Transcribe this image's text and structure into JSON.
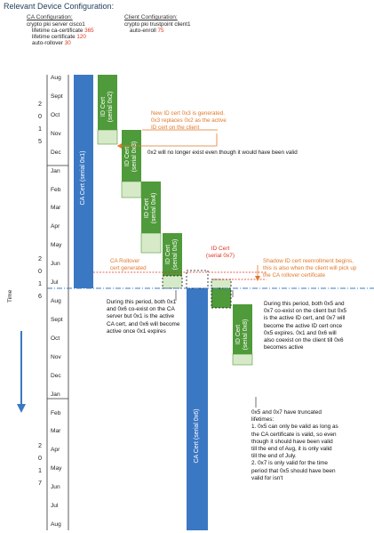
{
  "title": "Relevant Device Configuration:",
  "ca_config": {
    "heading": "CA Configuration:",
    "lines": [
      {
        "text": "crypto pki server cisco1",
        "value": ""
      },
      {
        "text": "lifetime ca-certificate ",
        "value": "365"
      },
      {
        "text": "lifetime certificate ",
        "value": "120"
      },
      {
        "text": "auto-rollover ",
        "value": "30"
      }
    ]
  },
  "client_config": {
    "heading": "Client Configuration:",
    "lines": [
      {
        "text": "crypto pki trustpoint client1",
        "value": ""
      },
      {
        "text": "auto-enroll ",
        "value": "75"
      }
    ]
  },
  "timeline": {
    "months": [
      "Aug",
      "Sept",
      "Oct",
      "Nov",
      "Dec",
      "Jan",
      "Feb",
      "Mar",
      "Apr",
      "May",
      "Jun",
      "Jul",
      "Aug",
      "Sept",
      "Oct",
      "Nov",
      "Dec",
      "Jan",
      "Feb",
      "Mar",
      "Apr",
      "May",
      "Jun",
      "Jul",
      "Aug"
    ],
    "year_2015": [
      "2",
      "0",
      "1",
      "5"
    ],
    "year_2016": [
      "2",
      "0",
      "1",
      "6"
    ],
    "year_2017": [
      "2",
      "0",
      "1",
      "7"
    ],
    "time_label": "Time"
  },
  "certs": {
    "ca_ox1": "CA Cert (serial 0x1)",
    "ca_ox6": "CA Cert (serial 0x6)",
    "id_ox2": "ID Cert\n(serial 0x2)",
    "id_ox3": "ID Cert\n(serial 0x3)",
    "id_ox4": "ID Cert\n(serial 0x4)",
    "id_ox5": "ID Cert\n(serial 0x5)",
    "id_ox7": "ID Cert\n(serial 0x7)",
    "id_ox8": "ID Cert\n(serial 0x8)"
  },
  "notes": {
    "new_id_cert": [
      "New ID cert 0x3 is generated.",
      "0x3 replaces 0x2 as the active",
      "ID cert on the client"
    ],
    "ox2_no_longer": "0x2 will no longer exist even though it would have been valid",
    "ca_rollover": [
      "CA Rollover",
      "cert generated"
    ],
    "shadow": [
      "Shadow ID cert reenrollment begins,",
      "this is also when the client will pick up",
      "the CA rollover certificate"
    ],
    "period1": "During this period, both 0x1 and 0x6 co-exist on the CA server but 0x1 is the active CA cert, and 0x6 will become active once 0x1 expires",
    "period2": "During this period, both 0x5 and 0x7 co-exist on the client but 0x5 is the active ID cert, and 0x7 will become the active ID cert once 0x5 expires. 0x1 and 0x6 will also coexist on the client till 0x6 becomes active",
    "truncated": [
      "0x5 and 0x7 have truncated lifetimes:",
      "1. 0x5 can only be valid as long as the CA certificate is valid, so even though it should have been valid till the end of Aug, it is only valid till the end of July.",
      "2. 0x7 is only valid for the time period that 0x5 should have been valid for isn't"
    ]
  },
  "colors": {
    "ca_blue": "#3b78c4",
    "id_green": "#4f9a3a",
    "id_light": "#d7eac8",
    "note_orange": "#e2782a",
    "note_red": "#e0301e"
  }
}
